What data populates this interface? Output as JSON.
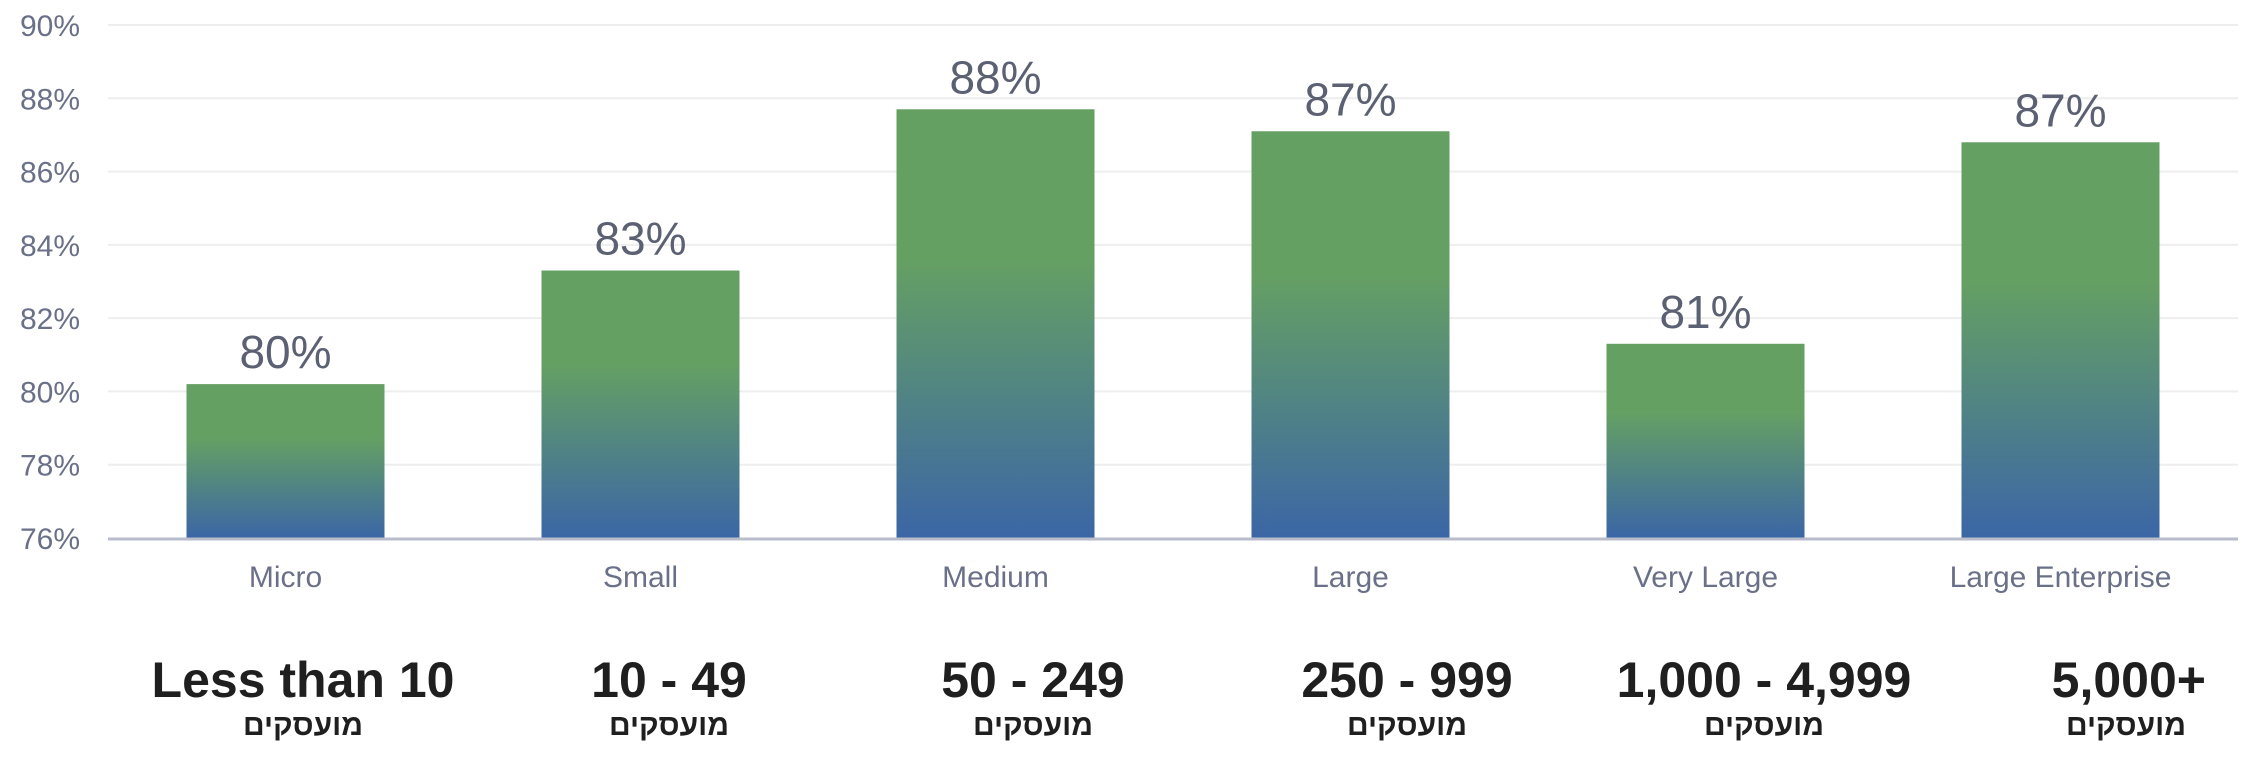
{
  "chart_data": {
    "type": "bar",
    "categories": [
      "Micro",
      "Small",
      "Medium",
      "Large",
      "Very Large",
      "Large Enterprise"
    ],
    "values": [
      80.2,
      83.3,
      87.7,
      87.1,
      81.3,
      86.8
    ],
    "data_labels": [
      "80%",
      "83%",
      "88%",
      "87%",
      "81%",
      "87%"
    ],
    "ylim": [
      76,
      90
    ],
    "yticks": [
      76,
      78,
      80,
      82,
      84,
      86,
      88,
      90
    ],
    "ytick_labels": [
      "76%",
      "78%",
      "80%",
      "82%",
      "84%",
      "86%",
      "88%",
      "90%"
    ],
    "grid": true,
    "legend": "none",
    "colors": {
      "bar_top": "#65a063",
      "bar_bottom": "#3b66a6",
      "grid": "#eeeeee",
      "axis": "#b9bccb"
    }
  },
  "groups": [
    {
      "range": "Less than 10",
      "unit": "מועסקים"
    },
    {
      "range": "10 - 49",
      "unit": "מועסקים"
    },
    {
      "range": "50 - 249",
      "unit": "מועסקים"
    },
    {
      "range": "250 - 999",
      "unit": "מועסקים"
    },
    {
      "range": "1,000 - 4,999",
      "unit": "מועסקים"
    },
    {
      "range": "5,000+",
      "unit": "מועסקים"
    }
  ]
}
